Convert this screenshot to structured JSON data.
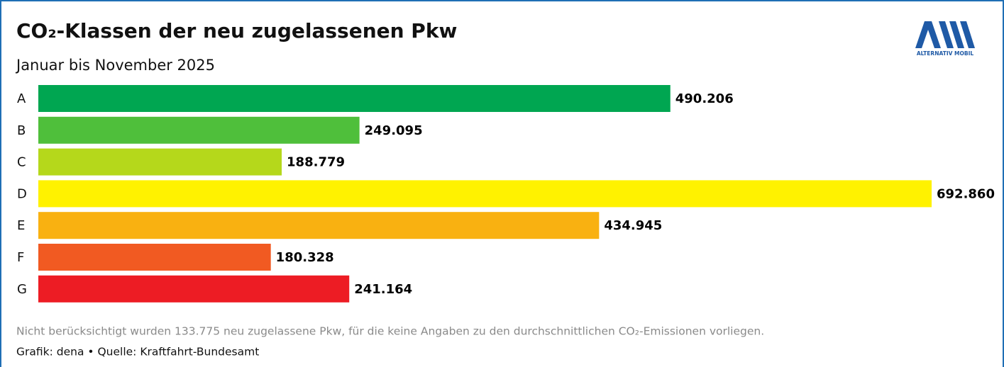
{
  "chart_data": {
    "type": "bar",
    "orientation": "horizontal",
    "title": "CO₂-Klassen der neu zugelassenen Pkw",
    "subtitle": "Januar bis November 2025",
    "categories": [
      "A",
      "B",
      "C",
      "D",
      "E",
      "F",
      "G"
    ],
    "values": [
      490206,
      249095,
      188779,
      692860,
      434945,
      180328,
      241164
    ],
    "value_labels": [
      "490.206",
      "249.095",
      "188.779",
      "692.860",
      "434.945",
      "180.328",
      "241.164"
    ],
    "colors": [
      "#00a651",
      "#4fbf3b",
      "#b5d81b",
      "#fff200",
      "#f9b111",
      "#f15a22",
      "#ed1c24"
    ],
    "note": "Nicht berücksichtigt wurden 133.775 neu zugelassene Pkw, für die keine Angaben zu den durchschnittlichen CO₂-Emissionen vorliegen.",
    "source": "Grafik: dena • Quelle: Kraftfahrt-Bundesamt",
    "logo_text": "ALTERNATIV MOBIL"
  }
}
